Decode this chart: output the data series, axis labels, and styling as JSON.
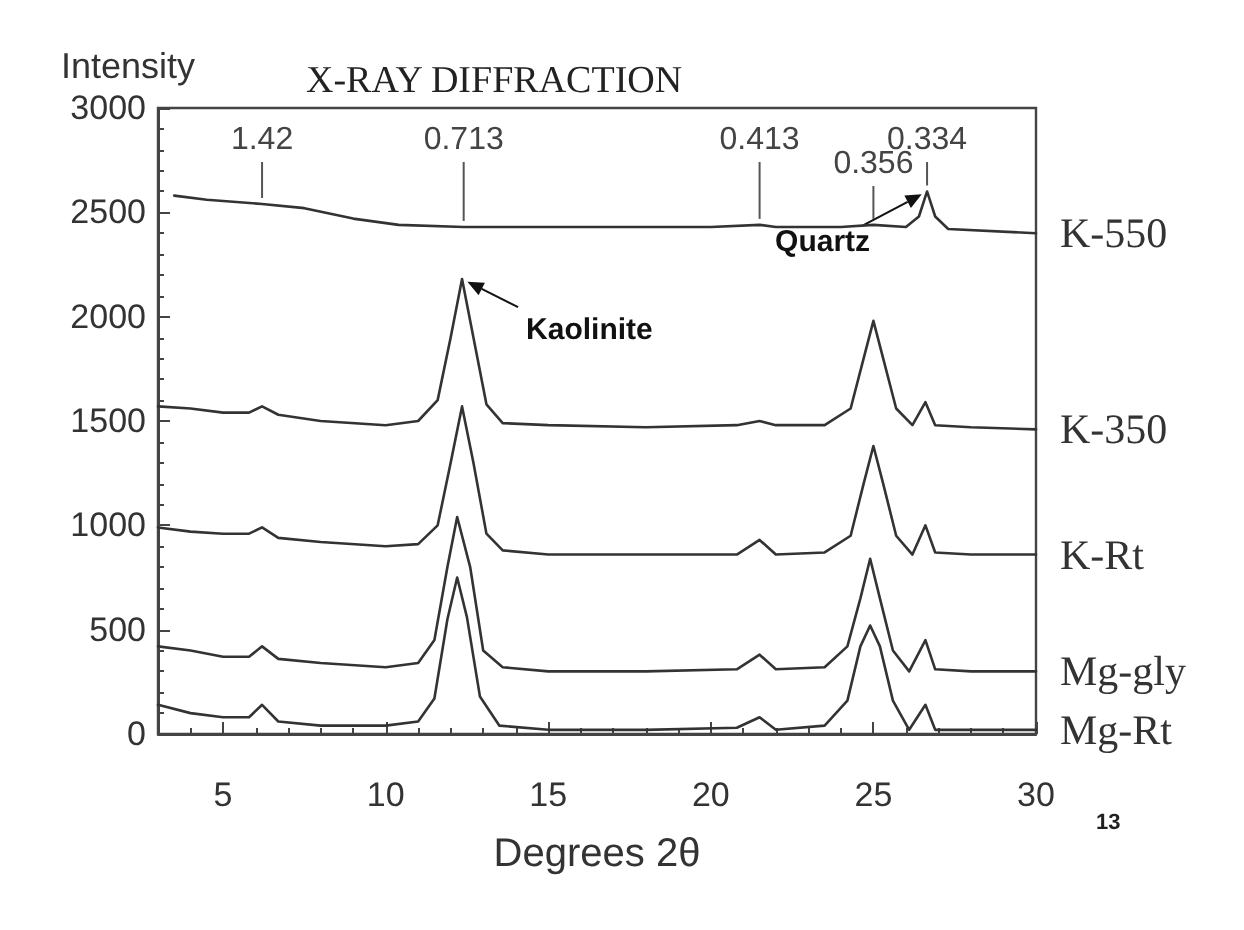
{
  "chart_data": {
    "type": "line",
    "title": "X-RAY DIFFRACTION",
    "xlabel": "Degrees 2θ",
    "ylabel": "Intensity",
    "xlim": [
      3,
      30
    ],
    "xticks": [
      5,
      10,
      15,
      20,
      25,
      30
    ],
    "ylim": [
      0,
      3000
    ],
    "yticks": [
      0,
      500,
      1000,
      1500,
      2000,
      2500,
      3000
    ],
    "grid": false,
    "legend": false,
    "marker": "none",
    "line_style": "solid",
    "annotations": [
      {
        "text": "1.42",
        "x": 6.2,
        "y": 2540
      },
      {
        "text": "0.713",
        "x": 12.4,
        "y": 2430
      },
      {
        "text": "0.413",
        "x": 21.5,
        "y": 2440
      },
      {
        "text": "0.356",
        "x": 25,
        "y": 2440
      },
      {
        "text": "0.334",
        "x": 26.65,
        "y": 2600
      },
      {
        "text": "Kaolinite",
        "x": 12.35,
        "y": 2180
      },
      {
        "text": "Quartz",
        "x": 26.65,
        "y": 2600
      },
      "13"
    ],
    "series": [
      {
        "name": "K-550",
        "color": "#333333",
        "x": [
          3.5,
          4.5,
          6.2,
          7.5,
          9,
          10.4,
          12.4,
          15,
          20,
          21.5,
          22,
          24,
          25,
          26,
          26.4,
          26.65,
          26.9,
          27.3,
          30
        ],
        "values": [
          2580,
          2560,
          2540,
          2520,
          2470,
          2440,
          2430,
          2430,
          2430,
          2440,
          2430,
          2430,
          2440,
          2430,
          2480,
          2600,
          2480,
          2420,
          2400
        ]
      },
      {
        "name": "K-350",
        "color": "#333333",
        "x": [
          3,
          4,
          5,
          5.8,
          6.2,
          6.7,
          8,
          10,
          11,
          11.6,
          12.0,
          12.35,
          12.7,
          13.1,
          13.6,
          15,
          18,
          20.8,
          21.5,
          22,
          23.5,
          24.3,
          24.7,
          25,
          25.3,
          25.7,
          26.2,
          26.6,
          26.9,
          28,
          30
        ],
        "values": [
          1570,
          1560,
          1540,
          1540,
          1570,
          1530,
          1500,
          1480,
          1500,
          1600,
          1900,
          2180,
          1900,
          1580,
          1490,
          1480,
          1470,
          1480,
          1500,
          1480,
          1480,
          1560,
          1800,
          1980,
          1800,
          1560,
          1480,
          1590,
          1480,
          1470,
          1460
        ]
      },
      {
        "name": "K-Rt",
        "color": "#333333",
        "x": [
          3,
          4,
          5,
          5.8,
          6.2,
          6.7,
          8,
          10,
          11,
          11.6,
          12.0,
          12.35,
          12.7,
          13.1,
          13.6,
          15,
          18,
          20.8,
          21.5,
          22,
          23.5,
          24.3,
          24.7,
          25,
          25.3,
          25.7,
          26.2,
          26.6,
          26.9,
          28,
          30
        ],
        "values": [
          990,
          970,
          960,
          960,
          990,
          940,
          920,
          900,
          910,
          1000,
          1300,
          1570,
          1300,
          960,
          880,
          860,
          860,
          860,
          930,
          860,
          870,
          950,
          1200,
          1380,
          1200,
          950,
          860,
          1000,
          870,
          860,
          860
        ]
      },
      {
        "name": "Mg-gly",
        "color": "#333333",
        "x": [
          3,
          4,
          5,
          5.8,
          6.2,
          6.7,
          8,
          10,
          11,
          11.5,
          11.9,
          12.2,
          12.6,
          13,
          13.6,
          15,
          18,
          20.8,
          21.5,
          22,
          23.5,
          24.2,
          24.6,
          24.9,
          25.2,
          25.6,
          26.1,
          26.6,
          26.9,
          28,
          30
        ],
        "values": [
          420,
          400,
          370,
          370,
          420,
          360,
          340,
          320,
          340,
          450,
          800,
          1040,
          800,
          400,
          320,
          300,
          300,
          310,
          380,
          310,
          320,
          420,
          650,
          840,
          650,
          400,
          300,
          450,
          310,
          300,
          300
        ]
      },
      {
        "name": "Mg-Rt",
        "color": "#333333",
        "x": [
          3,
          4,
          5,
          5.8,
          6.2,
          6.7,
          8,
          10,
          11,
          11.5,
          11.9,
          12.2,
          12.5,
          12.9,
          13.5,
          15,
          18,
          20.8,
          21.5,
          22,
          23.5,
          24.2,
          24.6,
          24.9,
          25.2,
          25.6,
          26.1,
          26.6,
          26.9,
          28,
          30
        ],
        "values": [
          140,
          100,
          80,
          80,
          140,
          60,
          40,
          40,
          60,
          170,
          550,
          750,
          560,
          180,
          40,
          20,
          20,
          30,
          80,
          20,
          40,
          160,
          420,
          520,
          420,
          160,
          20,
          140,
          20,
          20,
          20
        ]
      }
    ]
  }
}
